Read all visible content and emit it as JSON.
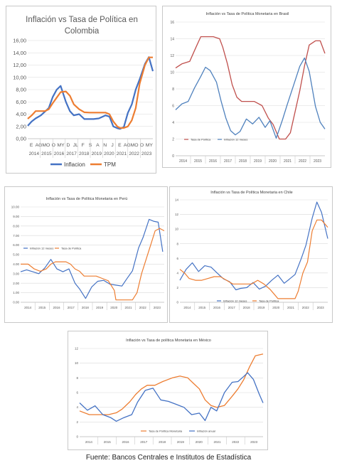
{
  "source": "Fuente: Bancos Centrales e Institutos de Estadística",
  "chart_data": [
    {
      "id": "colombia",
      "type": "line",
      "title": "Inflación vs Tasa de Política en Colombia",
      "ylim": [
        0,
        16
      ],
      "yticks": [
        "0,00",
        "2,00",
        "4,00",
        "6,00",
        "8,00",
        "10,00",
        "12,00",
        "14,00",
        "16,00"
      ],
      "ytick_values": [
        0,
        2,
        4,
        6,
        8,
        10,
        12,
        14,
        16
      ],
      "x_months": [
        "E",
        "AG",
        "MO",
        "O",
        "MY",
        "D",
        "JL",
        "F",
        "S",
        "A",
        "N",
        "J",
        "E",
        "AG",
        "MO",
        "O",
        "MY"
      ],
      "x_years": [
        "2014",
        "2015",
        "2016",
        "2017",
        "2018",
        "2019",
        "2020",
        "2021",
        "2022",
        "2023"
      ],
      "xlim": [
        2014.0,
        2023.5
      ],
      "grid": true,
      "legend": "bottom",
      "series": [
        {
          "name": "Inflacion",
          "color": "#4472c4",
          "x": [
            2014.0,
            2014.3,
            2014.6,
            2015.0,
            2015.3,
            2015.6,
            2015.9,
            2016.2,
            2016.5,
            2016.9,
            2017.2,
            2017.5,
            2017.9,
            2018.3,
            2018.7,
            2019.0,
            2019.4,
            2019.9,
            2020.2,
            2020.5,
            2020.8,
            2021.0,
            2021.3,
            2021.6,
            2021.9,
            2022.2,
            2022.5,
            2022.9,
            2023.2,
            2023.5
          ],
          "values": [
            2.1,
            2.8,
            3.3,
            3.8,
            4.4,
            5.0,
            6.8,
            8.0,
            8.6,
            6.0,
            4.5,
            3.8,
            4.0,
            3.2,
            3.2,
            3.2,
            3.3,
            3.8,
            3.6,
            2.0,
            1.7,
            1.6,
            1.9,
            4.2,
            5.6,
            8.0,
            9.7,
            12.2,
            13.3,
            11.0
          ]
        },
        {
          "name": "TPM",
          "color": "#ed7d31",
          "x": [
            2014.0,
            2014.3,
            2014.6,
            2015.0,
            2015.3,
            2015.6,
            2015.9,
            2016.2,
            2016.5,
            2016.9,
            2017.2,
            2017.5,
            2017.9,
            2018.3,
            2018.7,
            2019.0,
            2019.4,
            2019.9,
            2020.2,
            2020.5,
            2020.8,
            2021.0,
            2021.3,
            2021.6,
            2021.9,
            2022.2,
            2022.5,
            2022.9,
            2023.2,
            2023.5
          ],
          "values": [
            3.25,
            3.8,
            4.5,
            4.5,
            4.5,
            4.8,
            5.8,
            6.7,
            7.6,
            7.7,
            7.0,
            5.6,
            4.8,
            4.3,
            4.25,
            4.25,
            4.25,
            4.25,
            4.0,
            2.8,
            2.0,
            1.75,
            1.75,
            2.0,
            3.0,
            5.0,
            9.0,
            12.0,
            13.25,
            13.25
          ]
        }
      ]
    },
    {
      "id": "brasil",
      "type": "line",
      "title": "Inflación vs Tasa de Política Monetaria en Brasil",
      "ylim": [
        0,
        16
      ],
      "yticks": [
        "0",
        "2",
        "4",
        "6",
        "8",
        "10",
        "12",
        "14",
        "16"
      ],
      "ytick_values": [
        0,
        2,
        4,
        6,
        8,
        10,
        12,
        14,
        16
      ],
      "x_years": [
        "2014",
        "2015",
        "2016",
        "2017",
        "2018",
        "2019",
        "2020",
        "2021",
        "2022",
        "2023"
      ],
      "xlim": [
        2014.0,
        2023.5
      ],
      "grid": true,
      "legend": "bottom-left",
      "series": [
        {
          "name": "Tasa de Política",
          "color": "#c0504d",
          "x": [
            2014.0,
            2014.4,
            2014.9,
            2015.3,
            2015.6,
            2016.0,
            2016.4,
            2016.8,
            2017.0,
            2017.3,
            2017.6,
            2017.9,
            2018.2,
            2018.6,
            2019.0,
            2019.5,
            2019.9,
            2020.2,
            2020.6,
            2021.0,
            2021.3,
            2021.6,
            2021.9,
            2022.2,
            2022.5,
            2022.9,
            2023.2,
            2023.5
          ],
          "values": [
            10.5,
            11.0,
            11.3,
            13.0,
            14.25,
            14.25,
            14.25,
            14.0,
            13.0,
            11.0,
            8.5,
            7.0,
            6.5,
            6.5,
            6.5,
            6.0,
            4.5,
            3.75,
            2.0,
            2.0,
            2.75,
            5.25,
            7.75,
            10.75,
            13.25,
            13.75,
            13.75,
            12.25
          ]
        },
        {
          "name": "Inflación 12 meses",
          "color": "#4f81bd",
          "x": [
            2014.0,
            2014.4,
            2014.8,
            2015.2,
            2015.6,
            2015.9,
            2016.2,
            2016.6,
            2016.9,
            2017.2,
            2017.5,
            2017.8,
            2018.1,
            2018.5,
            2018.9,
            2019.3,
            2019.7,
            2020.0,
            2020.4,
            2020.8,
            2021.1,
            2021.5,
            2021.9,
            2022.2,
            2022.5,
            2022.9,
            2023.2,
            2023.5
          ],
          "values": [
            5.5,
            6.2,
            6.5,
            8.1,
            9.5,
            10.6,
            10.2,
            8.8,
            6.5,
            4.5,
            3.0,
            2.5,
            2.9,
            4.4,
            3.8,
            4.6,
            3.4,
            4.2,
            2.1,
            4.3,
            6.1,
            8.4,
            10.7,
            11.7,
            10.1,
            5.9,
            4.0,
            3.2
          ]
        }
      ]
    },
    {
      "id": "peru",
      "type": "line",
      "title": "Inflación vs Tasa de Política Monetaria en Perú",
      "ylim": [
        0,
        10
      ],
      "yticks": [
        "0.00",
        "1.00",
        "2.00",
        "3.00",
        "4.00",
        "5.00",
        "6.00",
        "7.00",
        "8.00",
        "9.00",
        "10.00"
      ],
      "ytick_values": [
        0,
        1,
        2,
        3,
        4,
        5,
        6,
        7,
        8,
        9,
        10
      ],
      "x_years": [
        "2014",
        "2015",
        "2016",
        "2017",
        "2018",
        "2019",
        "2020",
        "2021",
        "2022",
        "2023"
      ],
      "xlim": [
        2014.0,
        2023.5
      ],
      "grid": true,
      "legend": "top-left",
      "series": [
        {
          "name": "Inflación 12 meses",
          "color": "#4472c4",
          "x": [
            2014.0,
            2014.4,
            2014.8,
            2015.2,
            2015.6,
            2016.0,
            2016.4,
            2016.8,
            2017.2,
            2017.6,
            2017.9,
            2018.3,
            2018.7,
            2019.1,
            2019.5,
            2019.9,
            2020.3,
            2020.7,
            2021.0,
            2021.4,
            2021.8,
            2022.1,
            2022.5,
            2022.8,
            2023.1,
            2023.4
          ],
          "values": [
            3.2,
            3.4,
            3.2,
            3.0,
            3.6,
            4.5,
            3.5,
            3.2,
            3.5,
            2.0,
            1.4,
            0.4,
            1.6,
            2.2,
            2.3,
            1.9,
            1.8,
            1.7,
            2.4,
            3.3,
            5.7,
            6.8,
            8.7,
            8.5,
            8.4,
            5.3
          ]
        },
        {
          "name": "Tasa de Política",
          "color": "#ed7d31",
          "x": [
            2014.0,
            2014.5,
            2014.9,
            2015.3,
            2015.7,
            2016.0,
            2016.3,
            2016.7,
            2017.0,
            2017.3,
            2017.6,
            2017.9,
            2018.2,
            2018.6,
            2019.0,
            2019.4,
            2019.8,
            2020.2,
            2020.3,
            2020.7,
            2021.0,
            2021.4,
            2021.7,
            2022.0,
            2022.3,
            2022.6,
            2022.9,
            2023.2,
            2023.5
          ],
          "values": [
            4.0,
            4.0,
            3.5,
            3.25,
            3.5,
            4.0,
            4.25,
            4.25,
            4.25,
            4.0,
            3.5,
            3.25,
            2.75,
            2.75,
            2.75,
            2.5,
            2.25,
            1.25,
            0.25,
            0.25,
            0.25,
            0.25,
            1.0,
            3.0,
            4.5,
            6.0,
            7.5,
            7.75,
            7.5
          ]
        }
      ]
    },
    {
      "id": "chile",
      "type": "line",
      "title": "Inflación vs Tasa de Política Monetaria en Chile",
      "ylim": [
        0,
        14
      ],
      "yticks": [
        "0",
        "2",
        "4",
        "6",
        "8",
        "10",
        "12",
        "14"
      ],
      "ytick_values": [
        0,
        2,
        4,
        6,
        8,
        10,
        12,
        14
      ],
      "x_years": [
        "2014",
        "2015",
        "2016",
        "2017",
        "2018",
        "2019",
        "2020",
        "2021",
        "2022",
        "2023"
      ],
      "xlim": [
        2014.0,
        2023.5
      ],
      "grid": true,
      "legend": "bottom-left",
      "series": [
        {
          "name": "Inflación 12 meses",
          "color": "#4472c4",
          "x": [
            2014.0,
            2014.4,
            2014.8,
            2015.2,
            2015.6,
            2016.0,
            2016.4,
            2016.8,
            2017.2,
            2017.6,
            2017.9,
            2018.3,
            2018.7,
            2019.1,
            2019.5,
            2019.9,
            2020.3,
            2020.7,
            2021.0,
            2021.4,
            2021.8,
            2022.1,
            2022.5,
            2022.8,
            2023.1,
            2023.5
          ],
          "values": [
            3.0,
            4.5,
            5.4,
            4.2,
            5.0,
            4.8,
            4.0,
            3.2,
            2.8,
            1.7,
            1.9,
            2.0,
            2.7,
            1.8,
            2.2,
            3.0,
            3.7,
            2.6,
            3.1,
            3.8,
            6.0,
            7.8,
            11.5,
            13.7,
            12.3,
            8.7
          ]
        },
        {
          "name": "Tasa de Política",
          "color": "#ed7d31",
          "x": [
            2014.0,
            2014.3,
            2014.6,
            2015.0,
            2015.4,
            2015.8,
            2016.2,
            2016.6,
            2017.0,
            2017.4,
            2017.8,
            2018.2,
            2018.6,
            2019.0,
            2019.4,
            2019.8,
            2020.1,
            2020.3,
            2020.7,
            2021.0,
            2021.4,
            2021.6,
            2021.9,
            2022.2,
            2022.5,
            2022.8,
            2023.1,
            2023.5
          ],
          "values": [
            4.5,
            4.0,
            3.25,
            3.0,
            3.0,
            3.25,
            3.5,
            3.5,
            3.0,
            2.5,
            2.5,
            2.5,
            2.5,
            3.0,
            2.5,
            1.75,
            1.0,
            0.5,
            0.5,
            0.5,
            0.5,
            1.5,
            4.0,
            5.5,
            9.75,
            11.25,
            11.25,
            10.25
          ]
        }
      ]
    },
    {
      "id": "mexico",
      "type": "line",
      "title": "Inflación vs Tasa de política Monetaria en México",
      "ylim": [
        0,
        12
      ],
      "yticks": [
        "0",
        "2",
        "4",
        "6",
        "8",
        "10",
        "12"
      ],
      "ytick_values": [
        0,
        2,
        4,
        6,
        8,
        10,
        12
      ],
      "x_years": [
        "2014",
        "2015",
        "2016",
        "2017",
        "2018",
        "2019",
        "2020",
        "2021",
        "2022",
        "2023"
      ],
      "xlim": [
        2014.0,
        2023.5
      ],
      "grid": true,
      "legend": "bottom-center",
      "series": [
        {
          "name": "Tasa de Política Monetaria",
          "color": "#ed7d31",
          "x": [
            2014.0,
            2014.5,
            2015.0,
            2015.5,
            2015.9,
            2016.2,
            2016.6,
            2016.9,
            2017.2,
            2017.5,
            2017.9,
            2018.3,
            2018.8,
            2019.2,
            2019.6,
            2019.9,
            2020.2,
            2020.5,
            2020.8,
            2021.1,
            2021.5,
            2021.9,
            2022.2,
            2022.5,
            2022.8,
            2023.1,
            2023.5
          ],
          "values": [
            3.5,
            3.0,
            3.0,
            3.0,
            3.25,
            3.75,
            4.75,
            5.75,
            6.5,
            7.0,
            7.0,
            7.5,
            8.0,
            8.25,
            8.0,
            7.25,
            6.5,
            5.0,
            4.25,
            4.0,
            4.25,
            5.5,
            6.5,
            7.75,
            9.5,
            11.0,
            11.25
          ]
        },
        {
          "name": "Inflación anual",
          "color": "#4472c4",
          "x": [
            2014.0,
            2014.4,
            2014.8,
            2015.2,
            2015.6,
            2015.9,
            2016.3,
            2016.7,
            2017.0,
            2017.4,
            2017.8,
            2018.2,
            2018.6,
            2019.0,
            2019.4,
            2019.8,
            2020.2,
            2020.5,
            2020.8,
            2021.1,
            2021.5,
            2021.9,
            2022.2,
            2022.5,
            2022.7,
            2023.0,
            2023.3,
            2023.5
          ],
          "values": [
            4.6,
            3.6,
            4.2,
            3.0,
            2.6,
            2.1,
            2.6,
            3.0,
            4.7,
            6.3,
            6.6,
            5.0,
            4.8,
            4.4,
            4.0,
            3.0,
            3.2,
            2.2,
            4.0,
            3.5,
            6.0,
            7.4,
            7.5,
            8.2,
            8.7,
            7.8,
            5.8,
            4.6
          ]
        }
      ]
    }
  ]
}
